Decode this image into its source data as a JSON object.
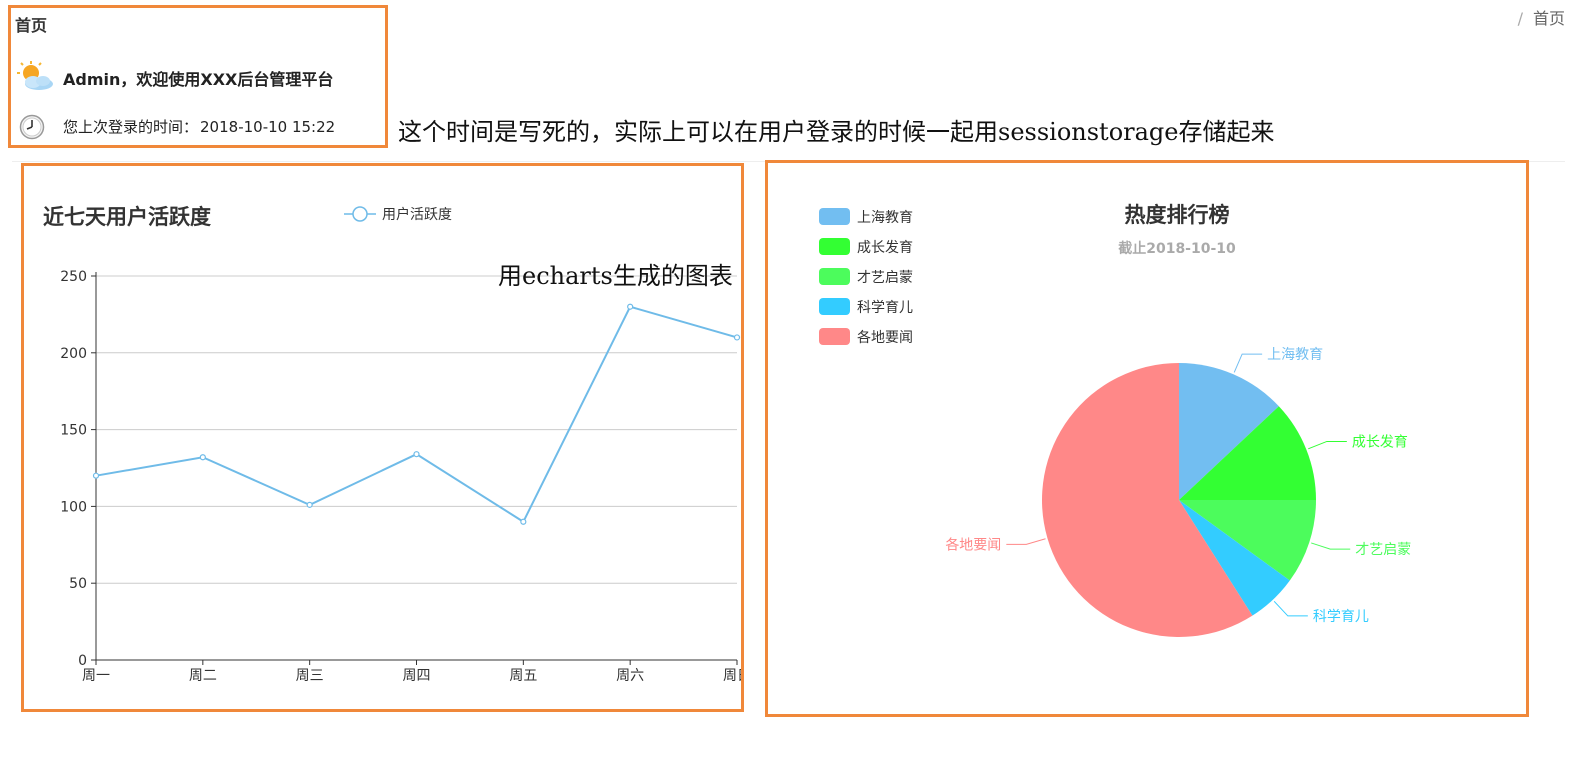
{
  "header": {
    "page_title": "首页",
    "welcome_text": "Admin，欢迎使用XXX后台管理平台",
    "last_login_label": "您上次登录的时间：",
    "last_login_value": "2018-10-10 15:22",
    "breadcrumb": {
      "separator": "/",
      "current": "首页"
    }
  },
  "annotations": {
    "time_note": "这个时间是写死的，实际上可以在用户登录的时候一起用sessionstorage存储起来",
    "chart_note": "用echarts生成的图表"
  },
  "icons": {
    "weather": "sun-cloud-icon",
    "clock": "clock-icon"
  },
  "colors": {
    "accent_border": "#f0883a",
    "line": "#6fbbe8"
  },
  "chart_data": [
    {
      "type": "line",
      "title": "近七天用户活跃度",
      "categories": [
        "周一",
        "周二",
        "周三",
        "周四",
        "周五",
        "周六",
        "周日"
      ],
      "series": [
        {
          "name": "用户活跃度",
          "values": [
            120,
            132,
            101,
            134,
            90,
            230,
            210
          ],
          "color": "#6fbbe8"
        }
      ],
      "ylim": [
        0,
        250
      ],
      "yticks": [
        0,
        50,
        100,
        150,
        200,
        250
      ],
      "grid": true,
      "legend": "top"
    },
    {
      "type": "pie",
      "title": "热度排行榜",
      "subtitle": "截止2018-10-10",
      "legend": "top-left",
      "slices": [
        {
          "name": "上海教育",
          "value": 13,
          "color": "#72bef1"
        },
        {
          "name": "成长发育",
          "value": 12,
          "color": "#33ff33"
        },
        {
          "name": "才艺启蒙",
          "value": 10,
          "color": "#4cfc5c"
        },
        {
          "name": "科学育儿",
          "value": 6,
          "color": "#33ccff"
        },
        {
          "name": "各地要闻",
          "value": 59,
          "color": "#ff8888"
        }
      ]
    }
  ]
}
